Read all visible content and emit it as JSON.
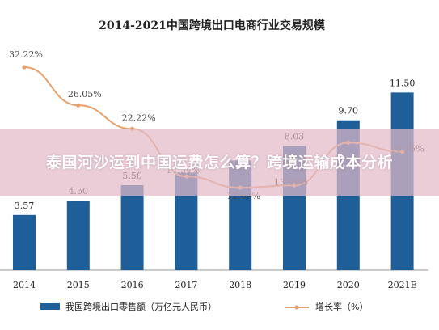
{
  "overlay": {
    "text": "泰国河沙运到中国运费怎么算？跨境运输成本分析"
  },
  "chart_data": {
    "type": "bar",
    "title": "2014-2021中国跨境出口电商行业交易规模",
    "categories": [
      "2014",
      "2015",
      "2016",
      "2017",
      "2018",
      "2019",
      "2020",
      "2021E"
    ],
    "series": [
      {
        "name": "我国跨境出口零售额（万亿元人民币）",
        "type": "bar",
        "values": [
          3.57,
          4.5,
          5.5,
          6.3,
          7.1,
          8.03,
          9.7,
          11.5
        ],
        "labels": [
          "3.57",
          "4.50",
          "5.50",
          "",
          "",
          "8.03",
          "9.70",
          "11.50"
        ]
      },
      {
        "name": "增长率（%）",
        "type": "line",
        "values": [
          32.22,
          26.05,
          22.22,
          14.54,
          12.69,
          13.09,
          20.0,
          18.55
        ],
        "labels": [
          "32.22%",
          "26.05%",
          "22.22%",
          "14.54%",
          "12.69%",
          "13.09%",
          "",
          "18.55%"
        ]
      }
    ],
    "ylim_bar": [
      0,
      12.5
    ],
    "ylim_line": [
      0,
      36
    ],
    "grid": false,
    "legend": "bottom",
    "colors": {
      "bar": "#1f5f99",
      "line": "#e8a06a"
    }
  }
}
